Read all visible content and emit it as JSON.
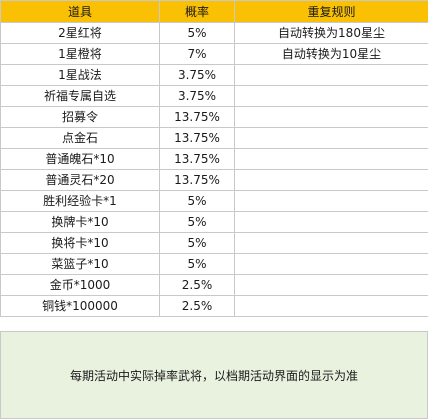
{
  "headers": [
    "道具",
    "概率",
    "重复规则"
  ],
  "rows": [
    {
      "item": "2星红将",
      "rate": "5%",
      "rule": "自动转换为180星尘"
    },
    {
      "item": "1星橙将",
      "rate": "7%",
      "rule": "自动转换为10星尘"
    },
    {
      "item": "1星战法",
      "rate": "3.75%",
      "rule": ""
    },
    {
      "item": "祈福专属自选",
      "rate": "3.75%",
      "rule": ""
    },
    {
      "item": "招募令",
      "rate": "13.75%",
      "rule": ""
    },
    {
      "item": "点金石",
      "rate": "13.75%",
      "rule": ""
    },
    {
      "item": "普通魄石*10",
      "rate": "13.75%",
      "rule": ""
    },
    {
      "item": "普通灵石*20",
      "rate": "13.75%",
      "rule": ""
    },
    {
      "item": "胜利经验卡*1",
      "rate": "5%",
      "rule": ""
    },
    {
      "item": "换牌卡*10",
      "rate": "5%",
      "rule": ""
    },
    {
      "item": "换将卡*10",
      "rate": "5%",
      "rule": ""
    },
    {
      "item": "菜篮子*10",
      "rate": "5%",
      "rule": ""
    },
    {
      "item": "金币*1000",
      "rate": "2.5%",
      "rule": ""
    },
    {
      "item": "铜钱*100000",
      "rate": "2.5%",
      "rule": ""
    }
  ],
  "note": "每期活动中实际掉率武将，以档期活动界面的显示为准",
  "colors": {
    "header_bg": "#fac003",
    "note_bg": "#e9f1df",
    "grid_line": "#c9c9c9"
  }
}
